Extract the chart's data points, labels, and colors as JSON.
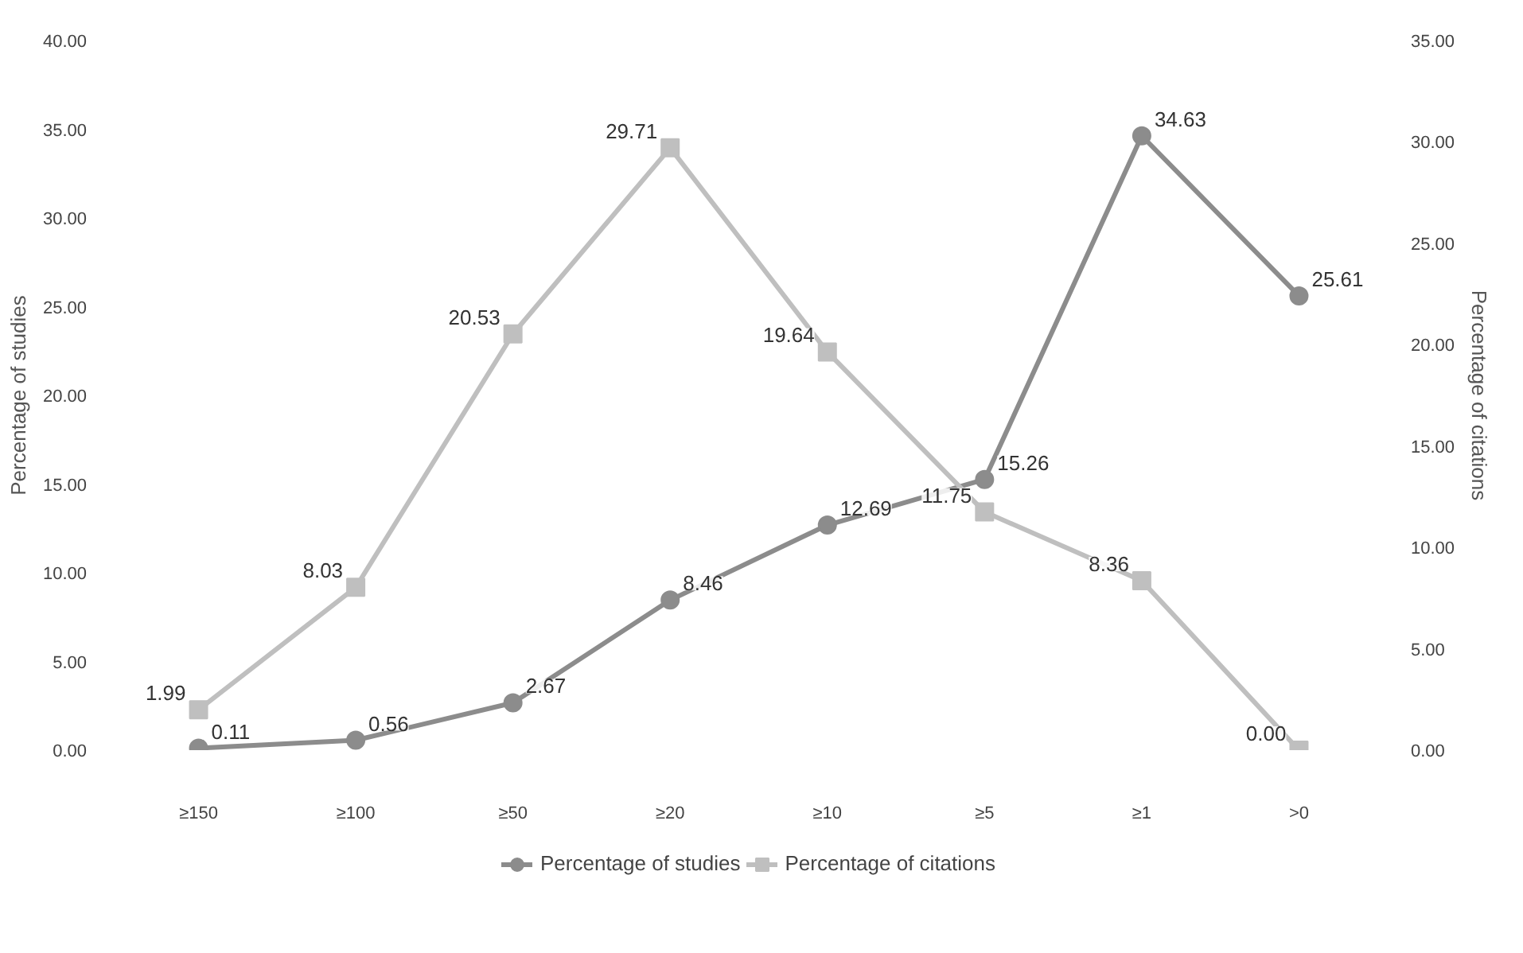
{
  "chart_data": {
    "type": "line",
    "ylabel": "Percentage of studies",
    "y2label": "Percentage of citations",
    "categories": [
      "≥150",
      "≥100",
      "≥50",
      "≥20",
      "≥10",
      "≥5",
      "≥1",
      ">0"
    ],
    "series": [
      {
        "name": "Percentage of studies",
        "color": "#8c8c8c",
        "marker": "circle",
        "values": [
          0.11,
          0.56,
          2.67,
          8.46,
          12.69,
          15.26,
          34.63,
          25.61
        ]
      },
      {
        "name": "Percentage of citations",
        "color": "#bfbfbf",
        "marker": "square",
        "axis": "y2",
        "values": [
          1.99,
          8.03,
          20.53,
          29.71,
          19.64,
          11.75,
          8.36,
          0.0
        ],
        "value_labels": [
          "1.99",
          "8.03",
          "20.53",
          "29.71",
          "19.64",
          "11.75",
          "8.36",
          "0.00"
        ]
      }
    ],
    "ylim": [
      0,
      40
    ],
    "yticks": [
      {
        "value": 0,
        "label": "0.00"
      },
      {
        "value": 5,
        "label": "5.00"
      },
      {
        "value": 10,
        "label": "10.00"
      },
      {
        "value": 15,
        "label": "15.00"
      },
      {
        "value": 20,
        "label": "20.00"
      },
      {
        "value": 25,
        "label": "25.00"
      },
      {
        "value": 30,
        "label": "30.00"
      },
      {
        "value": 35,
        "label": "35.00"
      },
      {
        "value": 40,
        "label": "40.00"
      }
    ],
    "y2lim": [
      0,
      35
    ],
    "y2ticks": [
      {
        "value": 0,
        "label": "0.00"
      },
      {
        "value": 5,
        "label": "5.00"
      },
      {
        "value": 10,
        "label": "10.00"
      },
      {
        "value": 15,
        "label": "15.00"
      },
      {
        "value": 20,
        "label": "20.00"
      },
      {
        "value": 25,
        "label": "25.00"
      },
      {
        "value": 30,
        "label": "30.00"
      },
      {
        "value": 35,
        "label": "35.00"
      }
    ],
    "data_labels": true,
    "grid": false,
    "legend": "bottom",
    "line_style": "solid"
  }
}
